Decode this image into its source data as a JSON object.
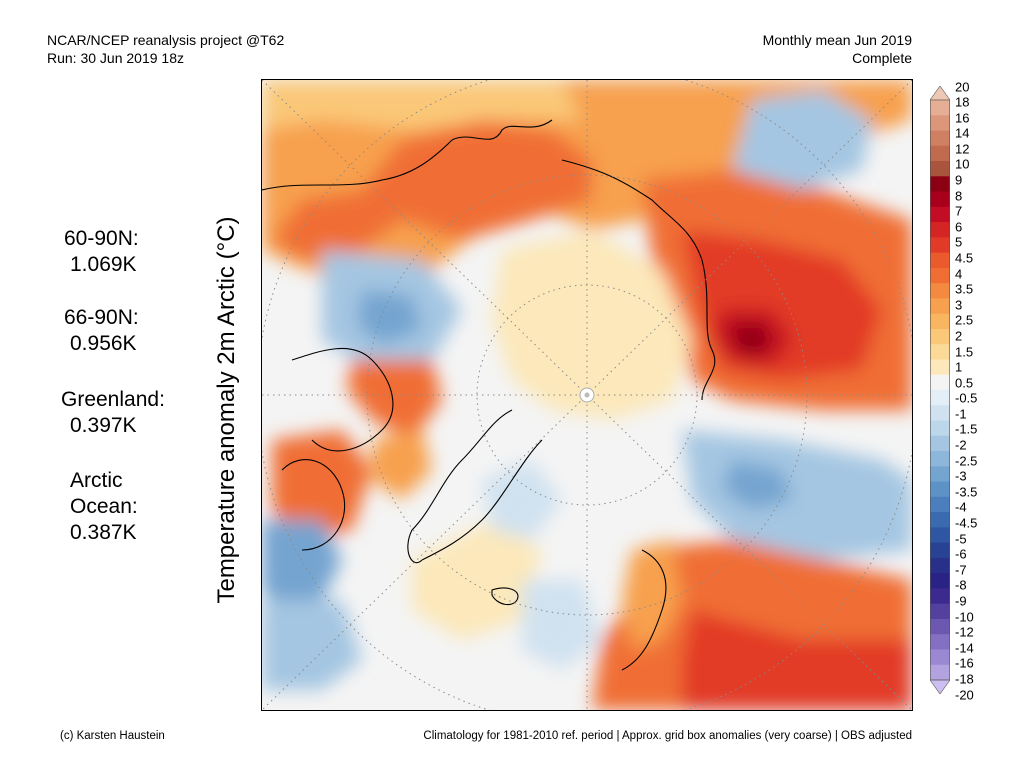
{
  "header": {
    "title_line1": "NCAR/NCEP reanalysis project @T62",
    "title_line2": "Run: 30 Jun 2019 18z",
    "right_line1": "Monthly mean Jun 2019",
    "right_line2": "Complete"
  },
  "ylabel": "Temperature anomaly 2m Arctic (°C)",
  "stats": [
    {
      "name": "60-90N:",
      "value": "1.069K"
    },
    {
      "name": "66-90N:",
      "value": "0.956K"
    },
    {
      "name": "Greenland:",
      "value": "0.397K"
    },
    {
      "name_line1": "Arctic",
      "name_line2": "Ocean:",
      "value": "0.387K"
    }
  ],
  "colorbar": {
    "labels": [
      "20",
      "18",
      "16",
      "14",
      "12",
      "10",
      "9",
      "8",
      "7",
      "6",
      "5",
      "4.5",
      "4",
      "3.5",
      "3",
      "2.5",
      "2",
      "1.5",
      "1",
      "0.5",
      "-0.5",
      "-1",
      "-1.5",
      "-2",
      "-2.5",
      "-3",
      "-3.5",
      "-4",
      "-4.5",
      "-5",
      "-6",
      "-7",
      "-8",
      "-9",
      "-10",
      "-12",
      "-14",
      "-16",
      "-18",
      "-20"
    ],
    "colors": [
      "#efc8b4",
      "#e6ae94",
      "#dc977a",
      "#cf7f62",
      "#c06a4e",
      "#a9543c",
      "#8c0014",
      "#a8001c",
      "#c30d24",
      "#d52424",
      "#e23a28",
      "#ea5a2c",
      "#f06e34",
      "#f48a40",
      "#f7a04e",
      "#f9b660",
      "#fac878",
      "#fbd996",
      "#fce8ba",
      "#f4f4f4",
      "#e4eef6",
      "#d0e2f0",
      "#bcd6ea",
      "#a4c6e2",
      "#8cb6da",
      "#74a4d0",
      "#5c92c6",
      "#4a7ebc",
      "#3a6ab0",
      "#2e56a2",
      "#284294",
      "#28308a",
      "#2a2284",
      "#3c2a8e",
      "#54409e",
      "#6c58b0",
      "#8470c2",
      "#9a88d2",
      "#b2a2e0",
      "#ccbef0"
    ]
  },
  "footer": {
    "left": "(c) Karsten Haustein",
    "right": "Climatology for 1981-2010 ref. period | Approx. grid box anomalies (very coarse) | OBS adjusted"
  },
  "map": {
    "palette": {
      "neutral": "#f4f4f4",
      "warm1": "#fce8ba",
      "warm2": "#fac878",
      "warm3": "#f7a04e",
      "warm4": "#f06e34",
      "warm5": "#e23a28",
      "warm6": "#c30d24",
      "warm7": "#8c0014",
      "cool1": "#d0e2f0",
      "cool2": "#a4c6e2",
      "cool3": "#74a4d0",
      "cool4": "#3a6ab0"
    }
  }
}
